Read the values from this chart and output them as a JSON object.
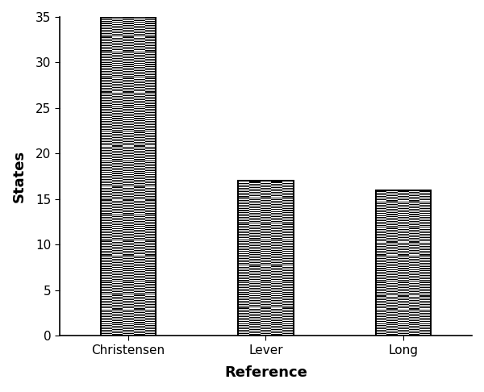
{
  "categories": [
    "Christensen",
    "Lever",
    "Long"
  ],
  "values": [
    35,
    17,
    16
  ],
  "bar_width": 0.4,
  "bar_positions": [
    0,
    1,
    2
  ],
  "xlabel": "Reference",
  "ylabel": "States",
  "ylim": [
    0,
    35
  ],
  "yticks": [
    0,
    5,
    10,
    15,
    20,
    25,
    30,
    35
  ],
  "xlim": [
    -0.5,
    2.5
  ],
  "background_color": "#ffffff",
  "xlabel_fontsize": 13,
  "ylabel_fontsize": 13,
  "tick_fontsize": 11,
  "xlabel_fontweight": "bold",
  "ylabel_fontweight": "bold",
  "checker_cols": 5,
  "bar_edge_color": "#000000",
  "bar_edge_linewidth": 1.5
}
